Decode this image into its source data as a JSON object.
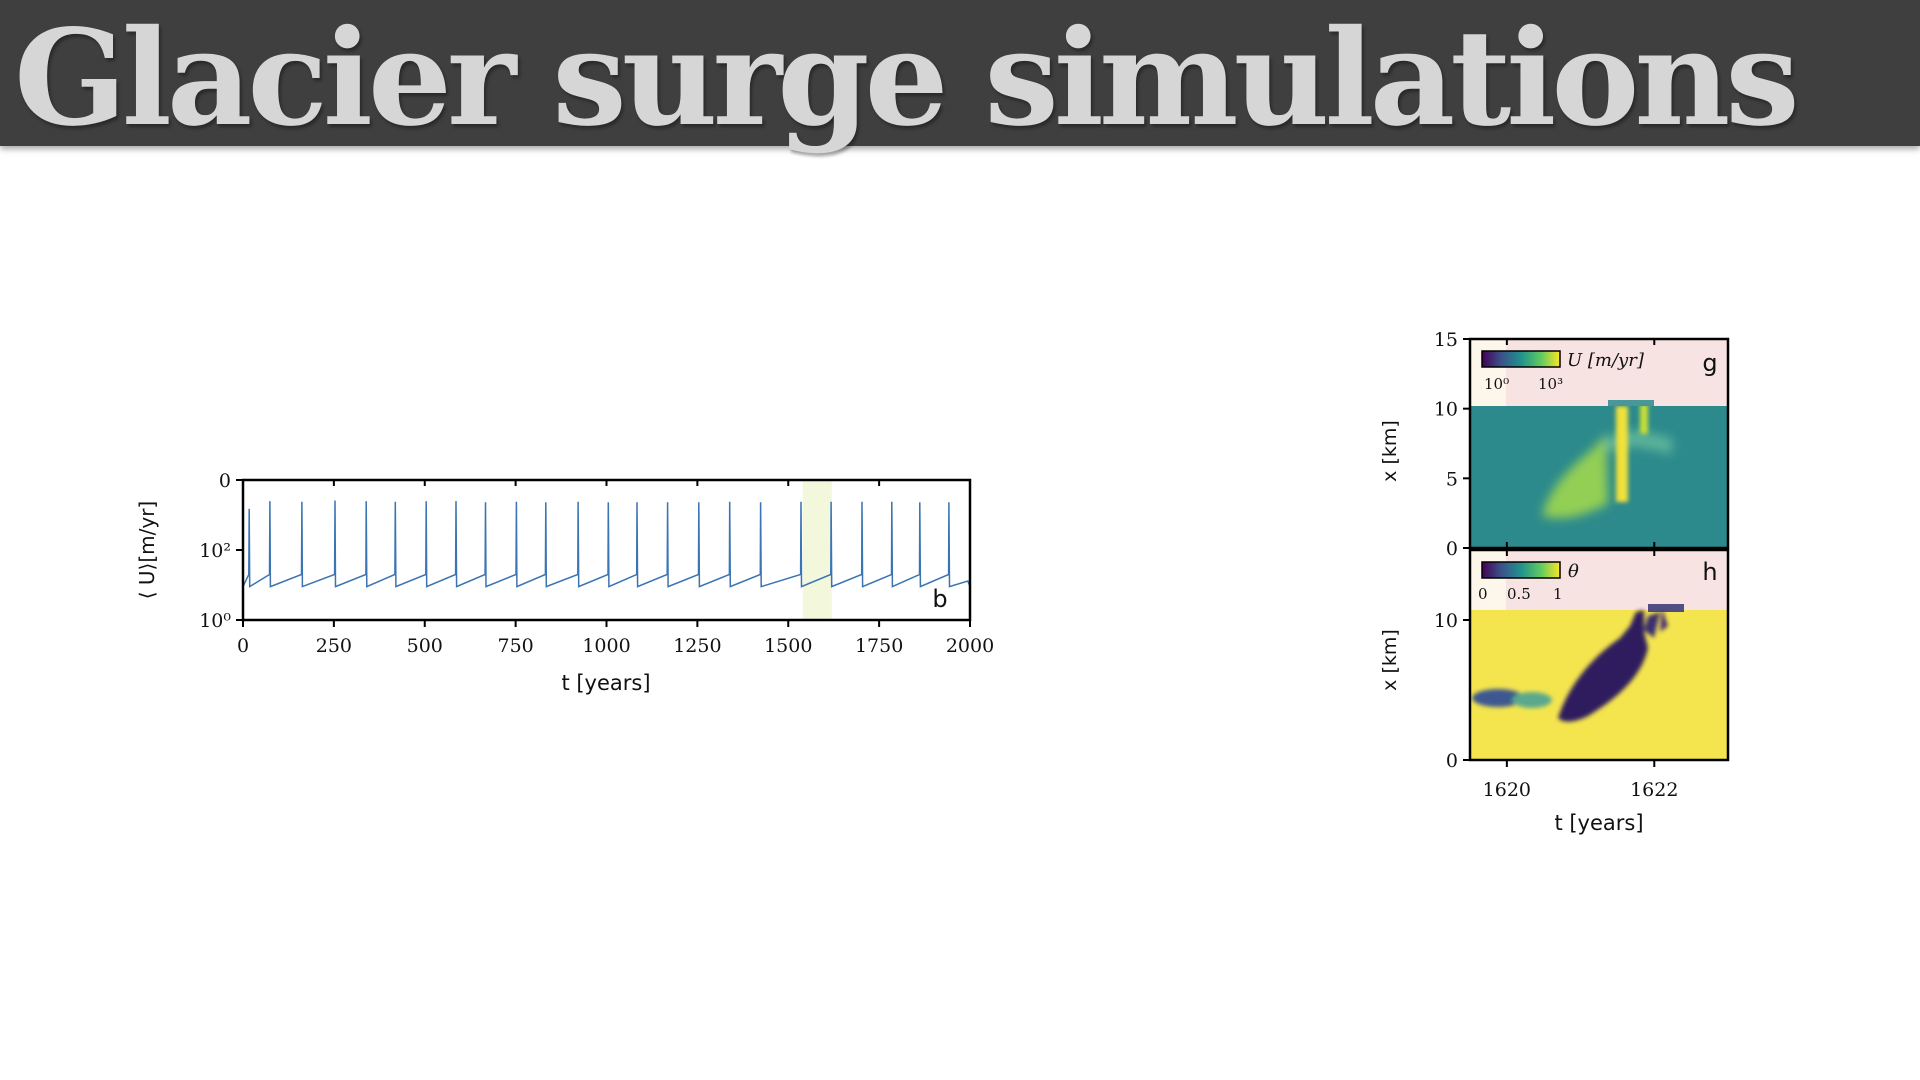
{
  "slide": {
    "title": "Glacier surge simulations"
  },
  "chart_data": [
    {
      "type": "line",
      "panel_label": "b",
      "xlabel": "t [years]",
      "ylabel": "⟨ U⟩[m/yr]",
      "yscale": "log",
      "xlim": [
        0,
        2000
      ],
      "ylim": [
        1,
        10000
      ],
      "xticks": [
        "0",
        "250",
        "500",
        "750",
        "1000",
        "1250",
        "1500",
        "1750",
        "2000"
      ],
      "yticks": [
        "10⁰",
        "10²",
        "0"
      ],
      "highlight_range": [
        1540,
        1620
      ],
      "color": "#3a74b3",
      "series": [
        {
          "baseline_min": 9,
          "baseline_max": 20,
          "surge_times": [
            17,
            74,
            162,
            253,
            339,
            419,
            504,
            586,
            667,
            752,
            833,
            922,
            1005,
            1084,
            1168,
            1254,
            1339,
            1424,
            1535,
            1618,
            1703,
            1785,
            1862,
            1942
          ],
          "surge_peaks": [
            1500,
            2500,
            2400,
            2600,
            2500,
            2400,
            2500,
            2500,
            2300,
            2400,
            2300,
            2400,
            2300,
            2300,
            2300,
            2300,
            2400,
            2300,
            2400,
            2400,
            2400,
            2400,
            2300,
            2300
          ]
        }
      ]
    },
    {
      "type": "heatmap",
      "panel_label": "g",
      "ylabel": "x [km]",
      "variable": "U",
      "colorbar_label": "U [m/yr]",
      "colorbar_ticks": [
        "10⁰",
        "10³"
      ],
      "colormap": "viridis",
      "xlim": [
        1619.5,
        1623
      ],
      "ylim": [
        0,
        15
      ],
      "yticks": [
        "0",
        "5",
        "10",
        "15"
      ],
      "no_ice_color": "#f8e3e3",
      "ice_extent_km": 10.7
    },
    {
      "type": "heatmap",
      "panel_label": "h",
      "xlabel": "t [years]",
      "ylabel": "x [km]",
      "variable": "θ",
      "colorbar_label": "θ",
      "colorbar_ticks": [
        "0",
        "0.5",
        "1"
      ],
      "colormap": "viridis",
      "xlim": [
        1619.5,
        1623
      ],
      "xticks": [
        "1620",
        "1622"
      ],
      "ylim": [
        0,
        15
      ],
      "yticks": [
        "0",
        "10"
      ],
      "no_ice_color": "#f8e3e3",
      "ice_extent_km": 10.7
    }
  ]
}
